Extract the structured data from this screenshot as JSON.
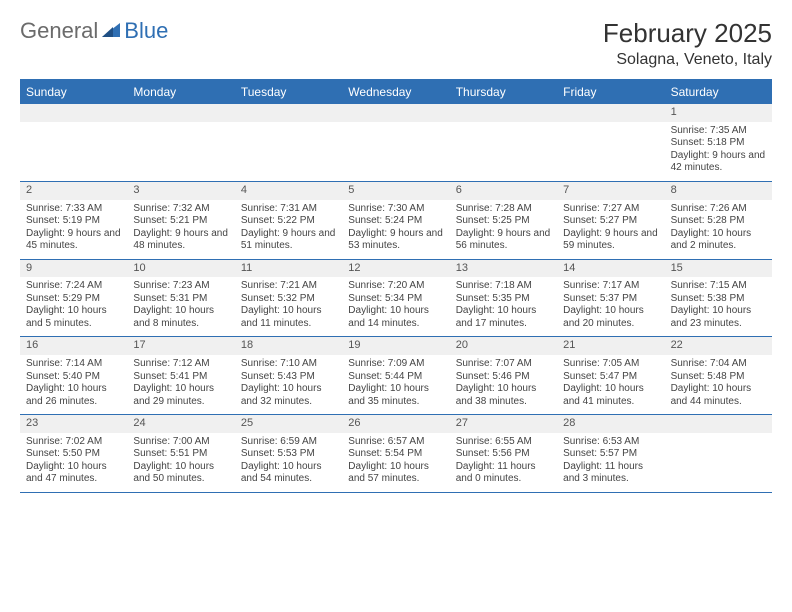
{
  "logo": {
    "text1": "General",
    "text2": "Blue"
  },
  "header": {
    "title": "February 2025",
    "location": "Solagna, Veneto, Italy"
  },
  "style": {
    "accent": "#2f6fb3",
    "header_bg": "#2f6fb3",
    "header_fg": "#ffffff",
    "daynum_bg": "#f0f0f0",
    "border": "#2f6fb3",
    "logo_gray": "#6b6b6b",
    "body_fontsize": 10,
    "head_fontsize": 12,
    "title_fontsize": 26,
    "loc_fontsize": 16
  },
  "day_names": [
    "Sunday",
    "Monday",
    "Tuesday",
    "Wednesday",
    "Thursday",
    "Friday",
    "Saturday"
  ],
  "show_blank_first_row": true,
  "days": [
    {
      "n": 1,
      "sunrise": "7:35 AM",
      "sunset": "5:18 PM",
      "daylight": "9 hours and 42 minutes."
    },
    {
      "n": 2,
      "sunrise": "7:33 AM",
      "sunset": "5:19 PM",
      "daylight": "9 hours and 45 minutes."
    },
    {
      "n": 3,
      "sunrise": "7:32 AM",
      "sunset": "5:21 PM",
      "daylight": "9 hours and 48 minutes."
    },
    {
      "n": 4,
      "sunrise": "7:31 AM",
      "sunset": "5:22 PM",
      "daylight": "9 hours and 51 minutes."
    },
    {
      "n": 5,
      "sunrise": "7:30 AM",
      "sunset": "5:24 PM",
      "daylight": "9 hours and 53 minutes."
    },
    {
      "n": 6,
      "sunrise": "7:28 AM",
      "sunset": "5:25 PM",
      "daylight": "9 hours and 56 minutes."
    },
    {
      "n": 7,
      "sunrise": "7:27 AM",
      "sunset": "5:27 PM",
      "daylight": "9 hours and 59 minutes."
    },
    {
      "n": 8,
      "sunrise": "7:26 AM",
      "sunset": "5:28 PM",
      "daylight": "10 hours and 2 minutes."
    },
    {
      "n": 9,
      "sunrise": "7:24 AM",
      "sunset": "5:29 PM",
      "daylight": "10 hours and 5 minutes."
    },
    {
      "n": 10,
      "sunrise": "7:23 AM",
      "sunset": "5:31 PM",
      "daylight": "10 hours and 8 minutes."
    },
    {
      "n": 11,
      "sunrise": "7:21 AM",
      "sunset": "5:32 PM",
      "daylight": "10 hours and 11 minutes."
    },
    {
      "n": 12,
      "sunrise": "7:20 AM",
      "sunset": "5:34 PM",
      "daylight": "10 hours and 14 minutes."
    },
    {
      "n": 13,
      "sunrise": "7:18 AM",
      "sunset": "5:35 PM",
      "daylight": "10 hours and 17 minutes."
    },
    {
      "n": 14,
      "sunrise": "7:17 AM",
      "sunset": "5:37 PM",
      "daylight": "10 hours and 20 minutes."
    },
    {
      "n": 15,
      "sunrise": "7:15 AM",
      "sunset": "5:38 PM",
      "daylight": "10 hours and 23 minutes."
    },
    {
      "n": 16,
      "sunrise": "7:14 AM",
      "sunset": "5:40 PM",
      "daylight": "10 hours and 26 minutes."
    },
    {
      "n": 17,
      "sunrise": "7:12 AM",
      "sunset": "5:41 PM",
      "daylight": "10 hours and 29 minutes."
    },
    {
      "n": 18,
      "sunrise": "7:10 AM",
      "sunset": "5:43 PM",
      "daylight": "10 hours and 32 minutes."
    },
    {
      "n": 19,
      "sunrise": "7:09 AM",
      "sunset": "5:44 PM",
      "daylight": "10 hours and 35 minutes."
    },
    {
      "n": 20,
      "sunrise": "7:07 AM",
      "sunset": "5:46 PM",
      "daylight": "10 hours and 38 minutes."
    },
    {
      "n": 21,
      "sunrise": "7:05 AM",
      "sunset": "5:47 PM",
      "daylight": "10 hours and 41 minutes."
    },
    {
      "n": 22,
      "sunrise": "7:04 AM",
      "sunset": "5:48 PM",
      "daylight": "10 hours and 44 minutes."
    },
    {
      "n": 23,
      "sunrise": "7:02 AM",
      "sunset": "5:50 PM",
      "daylight": "10 hours and 47 minutes."
    },
    {
      "n": 24,
      "sunrise": "7:00 AM",
      "sunset": "5:51 PM",
      "daylight": "10 hours and 50 minutes."
    },
    {
      "n": 25,
      "sunrise": "6:59 AM",
      "sunset": "5:53 PM",
      "daylight": "10 hours and 54 minutes."
    },
    {
      "n": 26,
      "sunrise": "6:57 AM",
      "sunset": "5:54 PM",
      "daylight": "10 hours and 57 minutes."
    },
    {
      "n": 27,
      "sunrise": "6:55 AM",
      "sunset": "5:56 PM",
      "daylight": "11 hours and 0 minutes."
    },
    {
      "n": 28,
      "sunrise": "6:53 AM",
      "sunset": "5:57 PM",
      "daylight": "11 hours and 3 minutes."
    }
  ],
  "first_weekday_index": 6,
  "labels": {
    "sunrise": "Sunrise:",
    "sunset": "Sunset:",
    "daylight": "Daylight:"
  }
}
